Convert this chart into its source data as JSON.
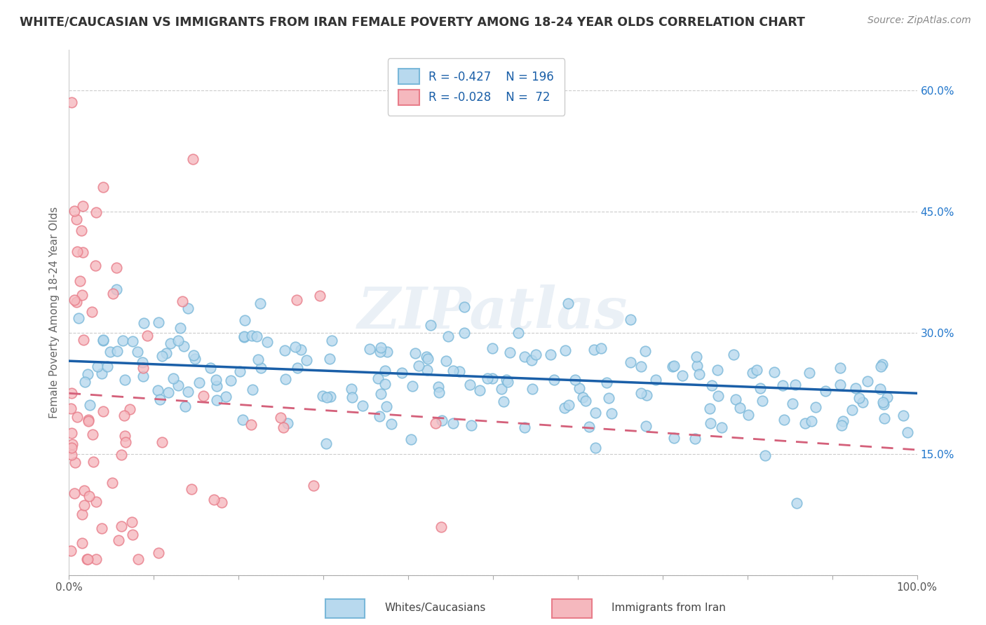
{
  "title": "WHITE/CAUCASIAN VS IMMIGRANTS FROM IRAN FEMALE POVERTY AMONG 18-24 YEAR OLDS CORRELATION CHART",
  "source": "Source: ZipAtlas.com",
  "xlabel": "",
  "ylabel": "Female Poverty Among 18-24 Year Olds",
  "xlim": [
    0,
    1
  ],
  "ylim": [
    0,
    0.65
  ],
  "x_ticks": [
    0.0,
    0.1,
    0.2,
    0.3,
    0.4,
    0.5,
    0.6,
    0.7,
    0.8,
    0.9,
    1.0
  ],
  "x_tick_labels": [
    "0.0%",
    "",
    "",
    "",
    "",
    "",
    "",
    "",
    "",
    "",
    "100.0%"
  ],
  "y_ticks": [
    0.0,
    0.15,
    0.3,
    0.45,
    0.6
  ],
  "y_tick_labels": [
    "",
    "15.0%",
    "30.0%",
    "45.0%",
    "60.0%"
  ],
  "blue_R": -0.427,
  "blue_N": 196,
  "pink_R": -0.028,
  "pink_N": 72,
  "blue_color": "#7ab8d9",
  "blue_fill": "#b8d9ee",
  "blue_line_color": "#1a5fa8",
  "pink_color": "#e87d8a",
  "pink_fill": "#f5b8be",
  "pink_line_color": "#d4607a",
  "watermark_color": "#dce6f0",
  "watermark": "ZIPatlas",
  "legend_label_blue": "Whites/Caucasians",
  "legend_label_pink": "Immigrants from Iran",
  "background_color": "#ffffff",
  "grid_color": "#cccccc",
  "blue_trend_start_y": 0.265,
  "blue_trend_end_y": 0.225,
  "pink_trend_start_y": 0.225,
  "pink_trend_end_y": 0.155
}
